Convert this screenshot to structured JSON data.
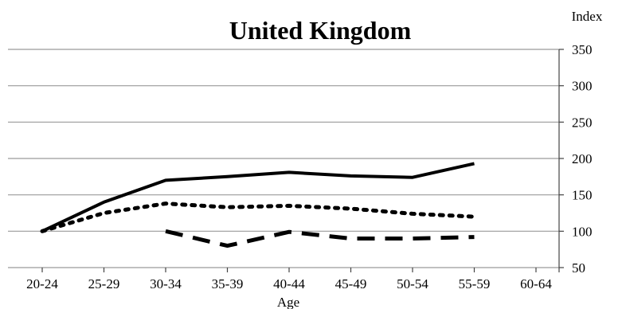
{
  "chart_data": {
    "type": "line",
    "title": "United Kingdom",
    "xlabel": "Age",
    "ylabel": "Index",
    "categories": [
      "20-24",
      "25-29",
      "30-34",
      "35-39",
      "40-44",
      "45-49",
      "50-54",
      "55-59",
      "60-64"
    ],
    "ylim": [
      50,
      350
    ],
    "yticks": [
      50,
      100,
      150,
      200,
      250,
      300,
      350
    ],
    "ytick_labels": [
      "50",
      "100",
      "150",
      "200",
      "250",
      "300",
      "350"
    ],
    "y_axis_side": "right",
    "grid": "horizontal",
    "legend": "none",
    "series": [
      {
        "style": "solid",
        "color": "#000000",
        "values": [
          100,
          140,
          170,
          175,
          181,
          176,
          174,
          193,
          null
        ]
      },
      {
        "style": "dotted",
        "color": "#000000",
        "values": [
          100,
          125,
          138,
          133,
          135,
          131,
          124,
          120,
          null
        ]
      },
      {
        "style": "dashed",
        "color": "#000000",
        "values": [
          null,
          null,
          100,
          80,
          99,
          90,
          90,
          92,
          null
        ]
      }
    ]
  }
}
